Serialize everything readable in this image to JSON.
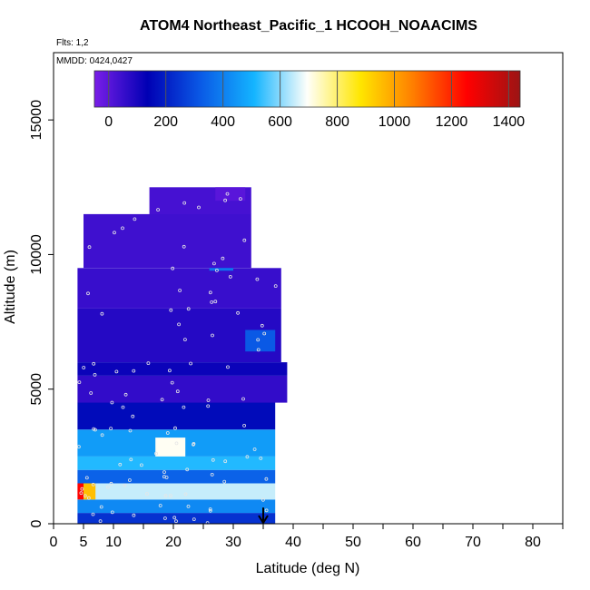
{
  "title": "ATOM4 Northeast_Pacific_1 HCOOH_NOAACIMS",
  "flights_note": "Flts: 1,2",
  "mmdd_note": "MMDD: 0424,0427",
  "chart_data": {
    "type": "heatmap",
    "title": "ATOM4 Northeast_Pacific_1 HCOOH_NOAACIMS",
    "xlabel": "Latitude (deg N)",
    "ylabel": "Altitude (m)",
    "xlim": [
      0,
      85
    ],
    "ylim": [
      0,
      17500
    ],
    "x_ticks": [
      0,
      5,
      10,
      20,
      30,
      40,
      50,
      60,
      70,
      80
    ],
    "y_ticks": [
      0,
      5000,
      10000,
      15000
    ],
    "colorbar": {
      "range": [
        -50,
        1440
      ],
      "ticks": [
        0,
        200,
        400,
        600,
        800,
        1000,
        1200,
        1400
      ],
      "colors": [
        "#7a1ee8",
        "#0000b4",
        "#0a5ae6",
        "#14b4ff",
        "#fffffa",
        "#ffe600",
        "#ff7d00",
        "#ff0000",
        "#9b1414"
      ]
    },
    "marker": {
      "type": "arrow",
      "x": 35,
      "y": 600
    },
    "cells": [
      {
        "lat": [
          4,
          37
        ],
        "alt": [
          0,
          400
        ],
        "value": 240
      },
      {
        "lat": [
          4,
          37
        ],
        "alt": [
          400,
          900
        ],
        "value": 420
      },
      {
        "lat": [
          4,
          37
        ],
        "alt": [
          900,
          1500
        ],
        "value": 650
      },
      {
        "lat": [
          4,
          5
        ],
        "alt": [
          900,
          1500
        ],
        "value": 1250
      },
      {
        "lat": [
          5,
          7
        ],
        "alt": [
          900,
          1500
        ],
        "value": 950
      },
      {
        "lat": [
          4,
          37
        ],
        "alt": [
          1500,
          2000
        ],
        "value": 340
      },
      {
        "lat": [
          4,
          37
        ],
        "alt": [
          2000,
          2500
        ],
        "value": 520
      },
      {
        "lat": [
          4,
          37
        ],
        "alt": [
          2500,
          3500
        ],
        "value": 460
      },
      {
        "lat": [
          17,
          22
        ],
        "alt": [
          2500,
          3200
        ],
        "value": 700
      },
      {
        "lat": [
          4,
          37
        ],
        "alt": [
          3500,
          4500
        ],
        "value": 160
      },
      {
        "lat": [
          4,
          39
        ],
        "alt": [
          4500,
          5500
        ],
        "value": 60
      },
      {
        "lat": [
          4,
          39
        ],
        "alt": [
          5500,
          6000
        ],
        "value": 120
      },
      {
        "lat": [
          4,
          38
        ],
        "alt": [
          6000,
          8000
        ],
        "value": 80
      },
      {
        "lat": [
          32,
          37
        ],
        "alt": [
          6400,
          7200
        ],
        "value": 320
      },
      {
        "lat": [
          4,
          38
        ],
        "alt": [
          8000,
          9500
        ],
        "value": 50
      },
      {
        "lat": [
          26,
          30
        ],
        "alt": [
          9400,
          9900
        ],
        "value": 380
      },
      {
        "lat": [
          5,
          33
        ],
        "alt": [
          9500,
          11500
        ],
        "value": 40
      },
      {
        "lat": [
          16,
          33
        ],
        "alt": [
          11500,
          12500
        ],
        "value": 30
      },
      {
        "lat": [
          27,
          32
        ],
        "alt": [
          12000,
          12500
        ],
        "value": 0
      }
    ]
  }
}
